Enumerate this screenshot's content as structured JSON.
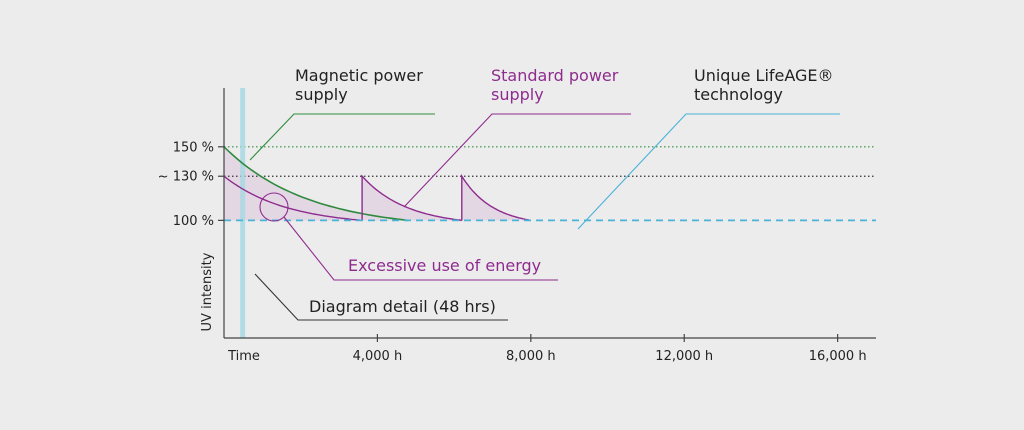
{
  "chart_data": {
    "type": "line",
    "title": "",
    "xlabel": "Time",
    "ylabel": "UV intensity",
    "x_ticks": [
      {
        "x": 4000,
        "label": "4,000 h"
      },
      {
        "x": 8000,
        "label": "8,000 h"
      },
      {
        "x": 12000,
        "label": "12,000 h"
      },
      {
        "x": 16000,
        "label": "16,000 h"
      }
    ],
    "y_ticks": [
      {
        "y": 150,
        "label": "150 %"
      },
      {
        "y": 130,
        "label": "~ 130 %"
      },
      {
        "y": 100,
        "label": "100 %"
      }
    ],
    "xlim": [
      0,
      17000
    ],
    "ylim": [
      20,
      190
    ],
    "series": [
      {
        "name": "Magnetic power supply",
        "color": "#2e8b3e",
        "points": [
          [
            0,
            150
          ],
          [
            1000,
            135
          ],
          [
            2000,
            122
          ],
          [
            3000,
            112
          ],
          [
            4000,
            105
          ],
          [
            4800,
            100
          ]
        ]
      },
      {
        "name": "Standard power supply",
        "color": "#8e2c8e",
        "cycles": [
          {
            "start": 0,
            "end": 3600,
            "from": 130,
            "to": 100
          },
          {
            "start": 3600,
            "end": 6200,
            "from": 130,
            "to": 100
          },
          {
            "start": 6200,
            "end": 8000,
            "from": 130,
            "to": 100
          }
        ]
      },
      {
        "name": "Unique LifeAGE® technology",
        "color": "#4ab3d8",
        "points": [
          [
            0,
            100
          ],
          [
            17000,
            100
          ]
        ]
      }
    ],
    "reference_lines": [
      {
        "y": 150,
        "color": "#2e8b3e"
      },
      {
        "y": 130,
        "color": "#333333"
      }
    ],
    "detail_band": {
      "x": 500
    },
    "annotations": {
      "magnetic": "Magnetic power\nsupply",
      "standard": "Standard power\nsupply",
      "lifeage": "Unique LifeAGE®\ntechnology",
      "excessive": "Excessive use of energy",
      "detail": "Diagram detail (48 hrs)"
    }
  },
  "colors": {
    "axis": "#444444",
    "fill": "#e4d7e4",
    "purple_text": "#8e2c8e"
  }
}
